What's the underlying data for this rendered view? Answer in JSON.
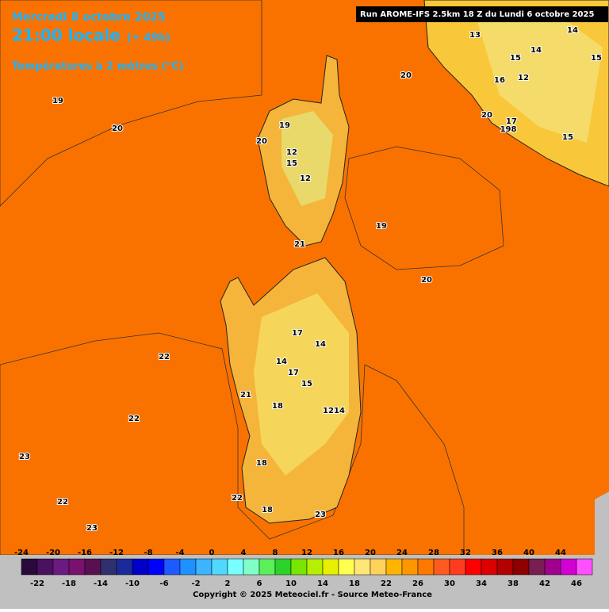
{
  "header": {
    "date": "Mercredi 8 octobre 2025",
    "time": "21:00 locale",
    "lead": "(+ 49h)",
    "parameter": "Températures à 2 mètres (°C)",
    "run": "Run AROME-IFS 2.5km 18 Z du Lundi 6 octobre 2025"
  },
  "map_labels": [
    19,
    20,
    19,
    20,
    21,
    22,
    22,
    23,
    22,
    23,
    23,
    22,
    18,
    18,
    21,
    18,
    15,
    17,
    14,
    17,
    14,
    14,
    12,
    19,
    20,
    12,
    15,
    12,
    20,
    13,
    14,
    15,
    14,
    16,
    12,
    15,
    20,
    17,
    198,
    15
  ],
  "colorbar": {
    "ticks": [
      -24,
      -22,
      -20,
      -18,
      -16,
      -14,
      -12,
      -10,
      -8,
      -6,
      -4,
      -2,
      0,
      2,
      4,
      6,
      8,
      10,
      12,
      14,
      16,
      18,
      20,
      22,
      24,
      26,
      28,
      30,
      32,
      34,
      36,
      38,
      40,
      42,
      44,
      46
    ],
    "colors": [
      "#2a0a3a",
      "#4b1060",
      "#6a1a80",
      "#7a1070",
      "#5a1050",
      "#303070",
      "#1a2a9a",
      "#0000c8",
      "#0000ff",
      "#1e5aff",
      "#1e90ff",
      "#3cb4ff",
      "#50d8ff",
      "#78ffff",
      "#80ffc8",
      "#5af05a",
      "#2ad22a",
      "#78e600",
      "#b4f000",
      "#e6f000",
      "#ffff50",
      "#ffe678",
      "#ffd25a",
      "#ffb400",
      "#ff9600",
      "#ff7800",
      "#ff5a1e",
      "#ff3c1e",
      "#ff0000",
      "#dc0000",
      "#b40000",
      "#8c0000",
      "#781e50",
      "#a0008c",
      "#d200d2",
      "#ff50ff"
    ]
  },
  "copyright": "Copyright © 2025 Meteociel.fr - Source Meteo-France"
}
